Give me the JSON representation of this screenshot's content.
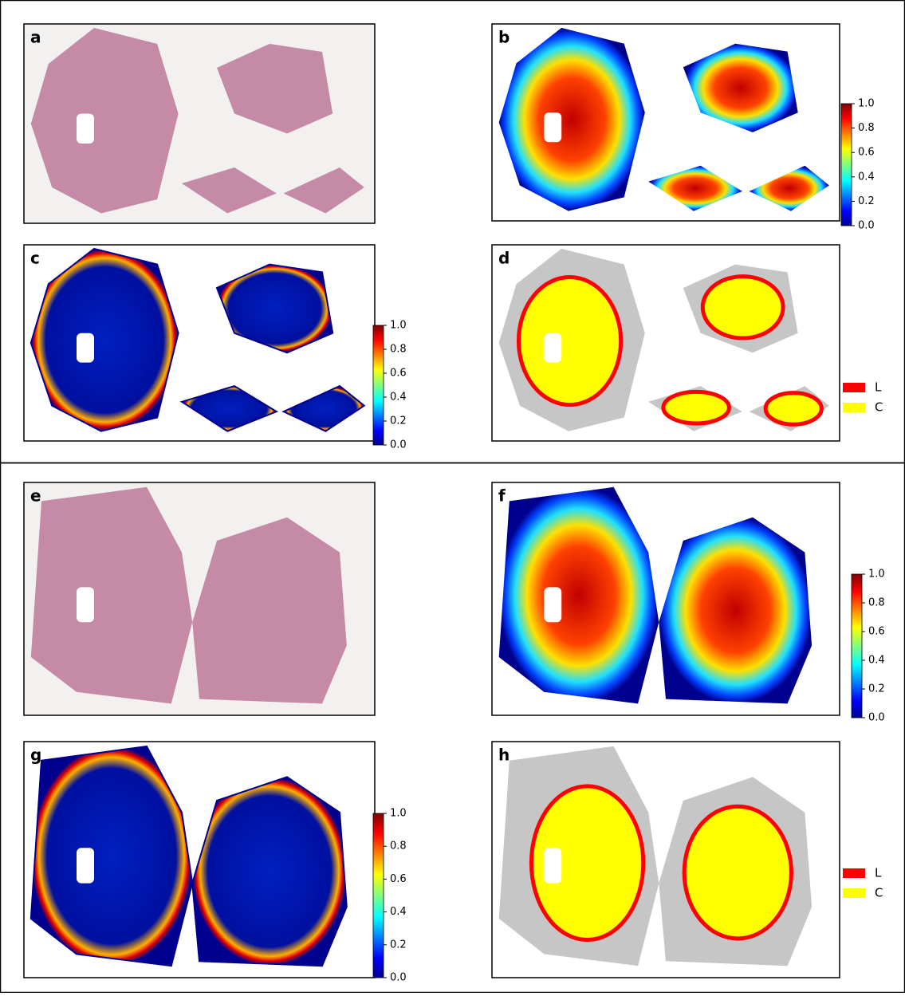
{
  "panels": [
    {
      "label": "a"
    },
    {
      "label": "b"
    },
    {
      "label": "c"
    },
    {
      "label": "d"
    },
    {
      "label": "e"
    },
    {
      "label": "f"
    },
    {
      "label": "g"
    },
    {
      "label": "h"
    }
  ],
  "colorbar_ticks": [
    "0.0",
    "0.2",
    "0.4",
    "0.6",
    "0.8",
    "1.0"
  ],
  "legend": [
    {
      "label": "L",
      "color": "#ff0000"
    },
    {
      "label": "C",
      "color": "#ffff00"
    }
  ]
}
